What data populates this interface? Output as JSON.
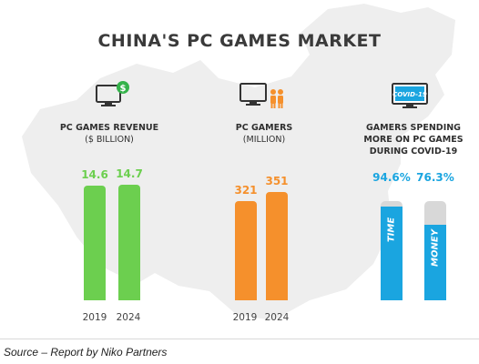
{
  "title": "CHINA'S PC GAMES MARKET",
  "source": "Source – Report by Niko Partners",
  "colors": {
    "green": "#6ccf4f",
    "orange": "#f5902c",
    "blue": "#1aa5e0",
    "track": "#d8d8d8",
    "map": "#eeeeee"
  },
  "icons": {
    "revenue": "monitor-dollar-icon",
    "gamers": "monitor-people-icon",
    "covid": "monitor-covid-icon"
  },
  "chart_data": [
    {
      "type": "bar",
      "title": "PC GAMES REVENUE",
      "subtitle": "($ BILLION)",
      "categories": [
        "2019",
        "2024"
      ],
      "values": [
        14.6,
        14.7
      ],
      "color": "#6ccf4f"
    },
    {
      "type": "bar",
      "title": "PC GAMERS",
      "subtitle": "(MILLION)",
      "categories": [
        "2019",
        "2024"
      ],
      "values": [
        321,
        351
      ],
      "color": "#f5902c"
    },
    {
      "type": "bar",
      "title_lines": [
        "GAMERS SPENDING",
        "MORE ON PC GAMES",
        "DURING COVID-19"
      ],
      "icon_text": "COVID-19",
      "categories": [
        "TIME",
        "MONEY"
      ],
      "value_labels": [
        "94.6%",
        "76.3%"
      ],
      "values": [
        94.6,
        76.3
      ],
      "unit": "%",
      "color": "#1aa5e0"
    }
  ]
}
